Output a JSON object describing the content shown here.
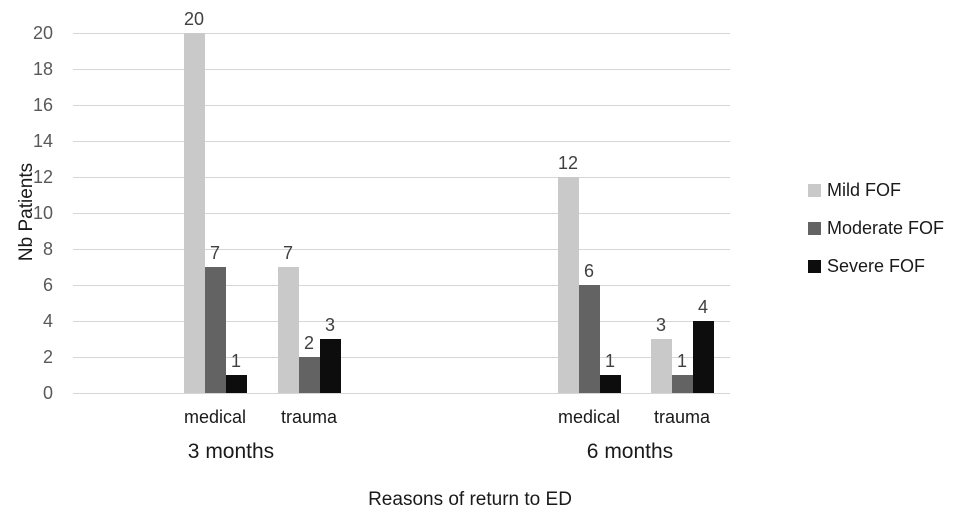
{
  "chart_data": {
    "type": "bar",
    "title": "",
    "ylabel": "Nb Patients",
    "xlabel": "Reasons of return to ED",
    "ylim": [
      0,
      20
    ],
    "ytick_step": 2,
    "grid": true,
    "legend_position": "right",
    "groups": [
      "3 months",
      "6 months"
    ],
    "categories": [
      "medical",
      "trauma",
      "medical",
      "trauma"
    ],
    "category_groups": [
      0,
      0,
      1,
      1
    ],
    "series": [
      {
        "name": "Mild FOF",
        "color": "#c9c9c9",
        "values": [
          20,
          7,
          12,
          3
        ]
      },
      {
        "name": "Moderate FOF",
        "color": "#636363",
        "values": [
          7,
          2,
          6,
          1
        ]
      },
      {
        "name": "Severe FOF",
        "color": "#0d0d0d",
        "values": [
          1,
          3,
          1,
          4
        ]
      }
    ]
  },
  "colors": {
    "gridline": "#d6d6d6",
    "tick_label": "#595959",
    "value_label": "#404040",
    "axis_text": "#1a1a1a",
    "background": "#ffffff"
  }
}
